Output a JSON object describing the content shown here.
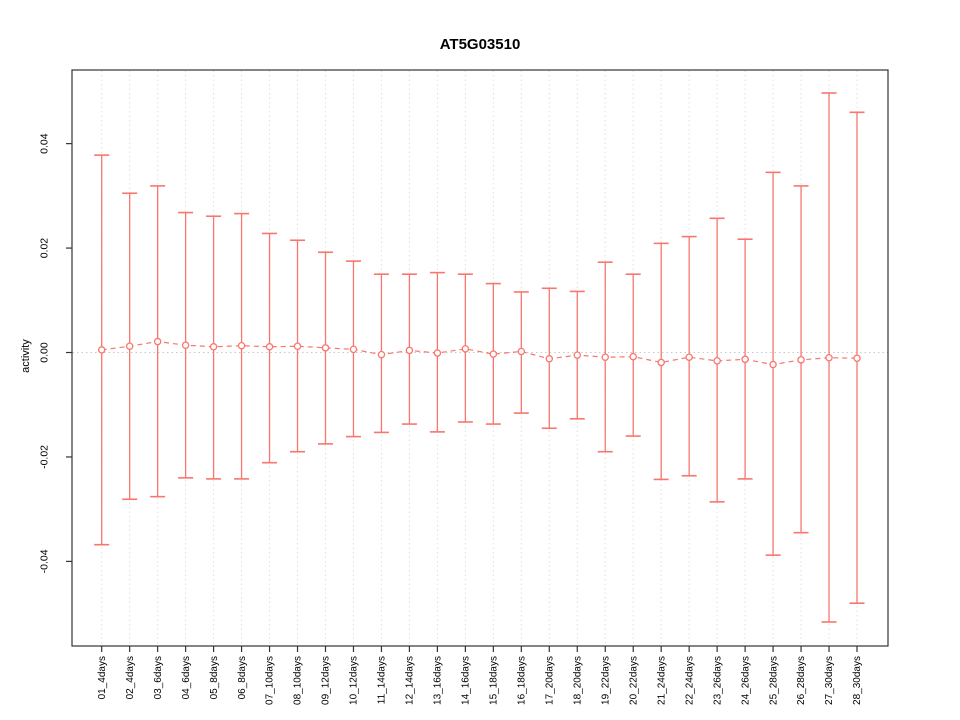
{
  "chart_data": {
    "type": "errorbar-line",
    "title": "AT5G03510",
    "xlabel": "",
    "ylabel": "activity",
    "legend": "none",
    "grid": "vertical dotted gridlines at each category; dotted horizontal line at y=0",
    "ylim": [
      -0.0562,
      0.0541
    ],
    "yticks": [
      -0.04,
      -0.02,
      0,
      0.02,
      0.04
    ],
    "ytick_labels": [
      "-0.04",
      "-0.02",
      "0.00",
      "0.02",
      "0.04"
    ],
    "categories": [
      "01_4days",
      "02_4days",
      "03_6days",
      "04_6days",
      "05_8days",
      "06_8days",
      "07_10days",
      "08_10days",
      "09_12days",
      "10_12days",
      "11_14days",
      "12_14days",
      "13_16days",
      "14_16days",
      "15_18days",
      "16_18days",
      "17_20days",
      "18_20days",
      "19_22days",
      "20_22days",
      "21_24days",
      "22_24days",
      "23_26days",
      "24_26days",
      "25_28days",
      "26_28days",
      "27_30days",
      "28_30days"
    ],
    "series": [
      {
        "name": "activity",
        "marker": "open-circle",
        "line_style": "dashed",
        "center": [
          0.0005,
          0.0012,
          0.0021,
          0.0014,
          0.0011,
          0.0013,
          0.0011,
          0.0012,
          0.0009,
          0.0006,
          -0.0004,
          0.0004,
          -0.0001,
          0.0007,
          -0.0003,
          0.0002,
          -0.0012,
          -0.0005,
          -0.0009,
          -0.0008,
          -0.0019,
          -0.0009,
          -0.0016,
          -0.0013,
          -0.0023,
          -0.0014,
          -0.001,
          -0.0011
        ],
        "upper": [
          0.0378,
          0.0305,
          0.0319,
          0.0268,
          0.0261,
          0.0266,
          0.0228,
          0.0215,
          0.0192,
          0.0175,
          0.015,
          0.015,
          0.0153,
          0.015,
          0.0132,
          0.0116,
          0.0123,
          0.0117,
          0.0173,
          0.015,
          0.0209,
          0.0222,
          0.0257,
          0.0217,
          0.0345,
          0.0319,
          0.0497,
          0.046
        ],
        "lower": [
          -0.0368,
          -0.0281,
          -0.0276,
          -0.024,
          -0.0242,
          -0.0242,
          -0.0211,
          -0.019,
          -0.0175,
          -0.0161,
          -0.0153,
          -0.0137,
          -0.0152,
          -0.0133,
          -0.0137,
          -0.0116,
          -0.0145,
          -0.0127,
          -0.019,
          -0.016,
          -0.0243,
          -0.0236,
          -0.0286,
          -0.0242,
          -0.0388,
          -0.0345,
          -0.0516,
          -0.048
        ]
      }
    ],
    "colors": {
      "series": "#f8766d",
      "grid": "#e0e0e0",
      "zero_line": "#c9c9c9",
      "axis": "#333333",
      "text": "#000000",
      "background": "#ffffff"
    }
  }
}
